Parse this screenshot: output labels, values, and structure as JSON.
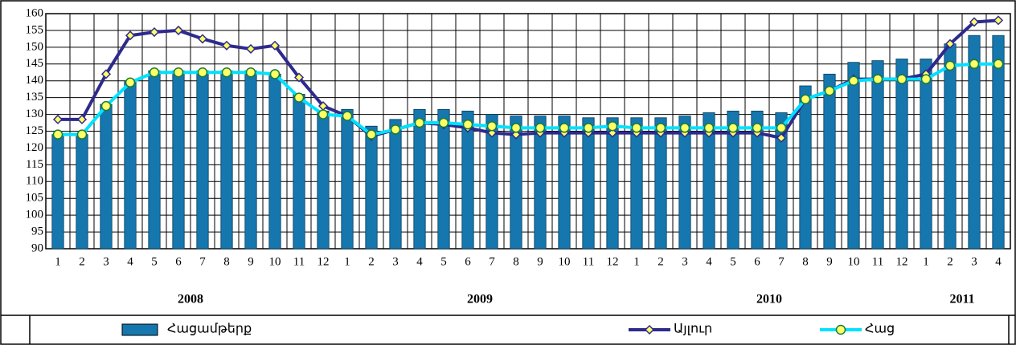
{
  "chart_data": {
    "type": "combo",
    "categories": [
      "1",
      "2",
      "3",
      "4",
      "5",
      "6",
      "7",
      "8",
      "9",
      "10",
      "11",
      "12",
      "1",
      "2",
      "3",
      "4",
      "5",
      "6",
      "7",
      "8",
      "9",
      "10",
      "11",
      "12",
      "1",
      "2",
      "3",
      "4",
      "5",
      "6",
      "7",
      "8",
      "9",
      "10",
      "11",
      "12",
      "1",
      "2",
      "3",
      "4"
    ],
    "year_labels": [
      "2008",
      "2009",
      "2010",
      "2011"
    ],
    "ylim": [
      90,
      160
    ],
    "yticks": [
      90,
      95,
      100,
      105,
      110,
      115,
      120,
      125,
      130,
      135,
      140,
      145,
      150,
      155,
      160
    ],
    "grid": true,
    "series": [
      {
        "name": "Հացամթերք",
        "type": "bar",
        "color": "#1577ad",
        "values": [
          124,
          124,
          133,
          140,
          143,
          143,
          143,
          143,
          143,
          142,
          136,
          131,
          131.5,
          126.5,
          128.5,
          131.5,
          131.5,
          131,
          130,
          129.5,
          129.5,
          129.5,
          129,
          129,
          129,
          129,
          129.5,
          130.5,
          131,
          131,
          130.5,
          138.5,
          142,
          145.5,
          146,
          146.5,
          146.5,
          151,
          153.5,
          153.5
        ]
      },
      {
        "name": "Այլուր",
        "type": "line",
        "marker": "diamond",
        "color": "#2e2a8c",
        "values": [
          128.5,
          128.5,
          142,
          153.5,
          154.5,
          155,
          152.5,
          150.5,
          149.5,
          150.5,
          141,
          132.5,
          129.5,
          123.5,
          125.5,
          127.5,
          127,
          126,
          124.5,
          124,
          124.5,
          124.5,
          124.5,
          124.5,
          124.5,
          124.5,
          124.5,
          124.5,
          124.5,
          124.5,
          123,
          134.5,
          137,
          140.5,
          140.5,
          140.5,
          142,
          151,
          157.5,
          158
        ]
      },
      {
        "name": "Հաց",
        "type": "line",
        "marker": "circle",
        "color": "#00e1ff",
        "values": [
          124,
          124,
          132.5,
          139.5,
          142.5,
          142.5,
          142.5,
          142.5,
          142.5,
          142,
          135,
          130,
          129.5,
          124,
          125.5,
          127.5,
          127.5,
          127,
          126.5,
          126,
          126,
          126,
          126,
          126.5,
          126,
          126,
          126,
          126,
          126,
          126,
          126,
          134.5,
          137,
          140,
          140.5,
          140.5,
          140.5,
          144.5,
          145,
          145
        ]
      }
    ]
  }
}
